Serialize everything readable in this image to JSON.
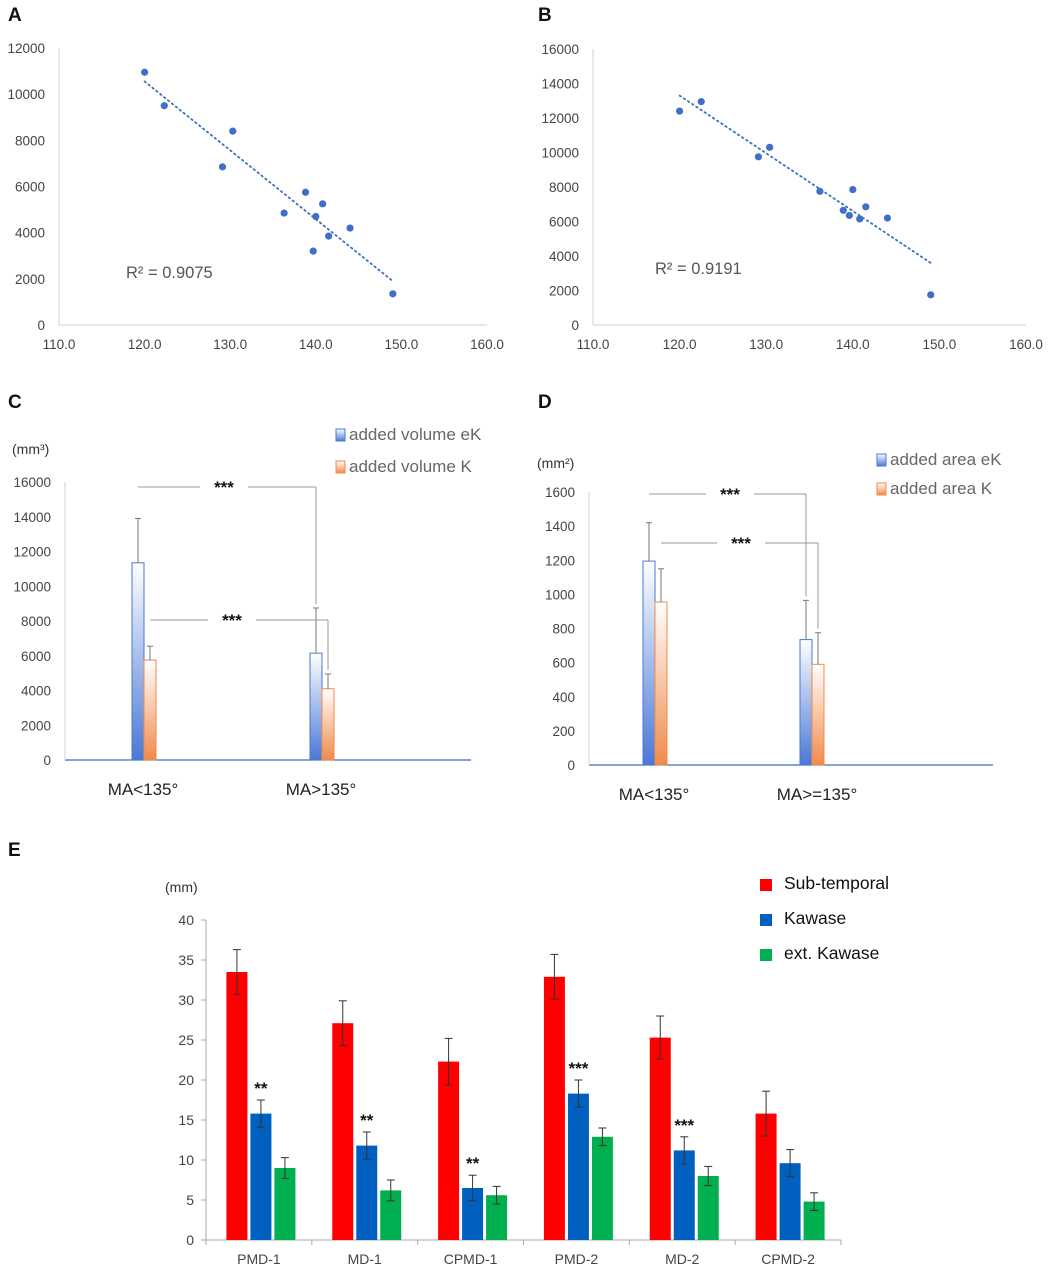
{
  "chart_data": [
    {
      "panel": "A",
      "type": "scatter",
      "points": [
        {
          "x": 120.0,
          "y": 10950
        },
        {
          "x": 122.3,
          "y": 9500
        },
        {
          "x": 129.1,
          "y": 6850
        },
        {
          "x": 130.3,
          "y": 8400
        },
        {
          "x": 136.3,
          "y": 4850
        },
        {
          "x": 138.8,
          "y": 5750
        },
        {
          "x": 140.0,
          "y": 4700
        },
        {
          "x": 139.7,
          "y": 3200
        },
        {
          "x": 140.8,
          "y": 5250
        },
        {
          "x": 141.5,
          "y": 3850
        },
        {
          "x": 144.0,
          "y": 4200
        },
        {
          "x": 149.0,
          "y": 1350
        }
      ],
      "trendline": {
        "x1": 120.0,
        "y1": 10550,
        "x2": 149.0,
        "y2": 1900,
        "style": "dotted"
      },
      "annotation": "R² = 0.9075",
      "xlim": [
        110,
        160
      ],
      "ylim": [
        0,
        12000
      ],
      "xticks": [
        "110.0",
        "120.0",
        "130.0",
        "140.0",
        "150.0",
        "160.0"
      ],
      "yticks": [
        "0",
        "2000",
        "4000",
        "6000",
        "8000",
        "10000",
        "12000"
      ]
    },
    {
      "panel": "B",
      "type": "scatter",
      "points": [
        {
          "x": 120.0,
          "y": 12400
        },
        {
          "x": 122.5,
          "y": 12950
        },
        {
          "x": 129.1,
          "y": 9750
        },
        {
          "x": 130.4,
          "y": 10300
        },
        {
          "x": 136.2,
          "y": 7750
        },
        {
          "x": 138.9,
          "y": 6650
        },
        {
          "x": 139.6,
          "y": 6350
        },
        {
          "x": 140.0,
          "y": 7850
        },
        {
          "x": 140.8,
          "y": 6150
        },
        {
          "x": 141.5,
          "y": 6850
        },
        {
          "x": 144.0,
          "y": 6200
        },
        {
          "x": 149.0,
          "y": 1750
        }
      ],
      "trendline": {
        "x1": 120.0,
        "y1": 13300,
        "x2": 149.0,
        "y2": 3600,
        "style": "dotted"
      },
      "annotation": "R² = 0.9191",
      "xlim": [
        110,
        160
      ],
      "ylim": [
        0,
        16000
      ],
      "xticks": [
        "110.0",
        "120.0",
        "130.0",
        "140.0",
        "150.0",
        "160.0"
      ],
      "yticks": [
        "0",
        "2000",
        "4000",
        "6000",
        "8000",
        "10000",
        "12000",
        "14000",
        "16000"
      ]
    },
    {
      "panel": "C",
      "type": "bar",
      "unit": "(mm³)",
      "categories": [
        "MA<135°",
        "MA>135°"
      ],
      "series": [
        {
          "name": "added volume eK",
          "values": [
            11350,
            6150
          ],
          "errors": [
            2550,
            2600
          ],
          "color": "#4a78d6"
        },
        {
          "name": "added volume K",
          "values": [
            5750,
            4100
          ],
          "errors": [
            800,
            850
          ],
          "color": "#f08a4b"
        }
      ],
      "ylim": [
        0,
        16000
      ],
      "yticks": [
        "0",
        "2000",
        "4000",
        "6000",
        "8000",
        "10000",
        "12000",
        "14000",
        "16000"
      ],
      "significance": [
        {
          "label": "***"
        },
        {
          "label": "***"
        }
      ]
    },
    {
      "panel": "D",
      "type": "bar",
      "unit": "(mm²)",
      "categories": [
        "MA<135°",
        "MA>=135°"
      ],
      "series": [
        {
          "name": "added area eK",
          "values": [
            1195,
            735
          ],
          "errors": [
            225,
            230
          ],
          "color": "#4a78d6"
        },
        {
          "name": "added area K",
          "values": [
            955,
            590
          ],
          "errors": [
            195,
            185
          ],
          "color": "#f08a4b"
        }
      ],
      "ylim": [
        0,
        1600
      ],
      "yticks": [
        "0",
        "200",
        "400",
        "600",
        "800",
        "1000",
        "1200",
        "1400",
        "1600"
      ],
      "significance": [
        {
          "label": "***"
        },
        {
          "label": "***"
        }
      ]
    },
    {
      "panel": "E",
      "type": "bar",
      "unit": "(mm)",
      "categories": [
        "PMD-1",
        "MD-1",
        "CPMD-1",
        "PMD-2",
        "MD-2",
        "CPMD-2"
      ],
      "series": [
        {
          "name": "Sub-temporal",
          "values": [
            33.5,
            27.1,
            22.3,
            32.9,
            25.3,
            15.8
          ],
          "errors": [
            2.8,
            2.8,
            2.9,
            2.8,
            2.7,
            2.8
          ],
          "color": "#ff0000"
        },
        {
          "name": "Kawase",
          "values": [
            15.8,
            11.8,
            6.5,
            18.3,
            11.2,
            9.6
          ],
          "errors": [
            1.7,
            1.7,
            1.6,
            1.7,
            1.7,
            1.7
          ],
          "color": "#0060c0"
        },
        {
          "name": "ext. Kawase",
          "values": [
            9.0,
            6.2,
            5.6,
            12.9,
            8.0,
            4.8
          ],
          "errors": [
            1.3,
            1.3,
            1.1,
            1.1,
            1.2,
            1.1
          ],
          "color": "#00b050"
        }
      ],
      "significance": [
        "**",
        "**",
        "**",
        "***",
        "***",
        ""
      ],
      "ylim": [
        0,
        40
      ],
      "yticks": [
        "0",
        "5",
        "10",
        "15",
        "20",
        "25",
        "30",
        "35",
        "40"
      ]
    }
  ]
}
